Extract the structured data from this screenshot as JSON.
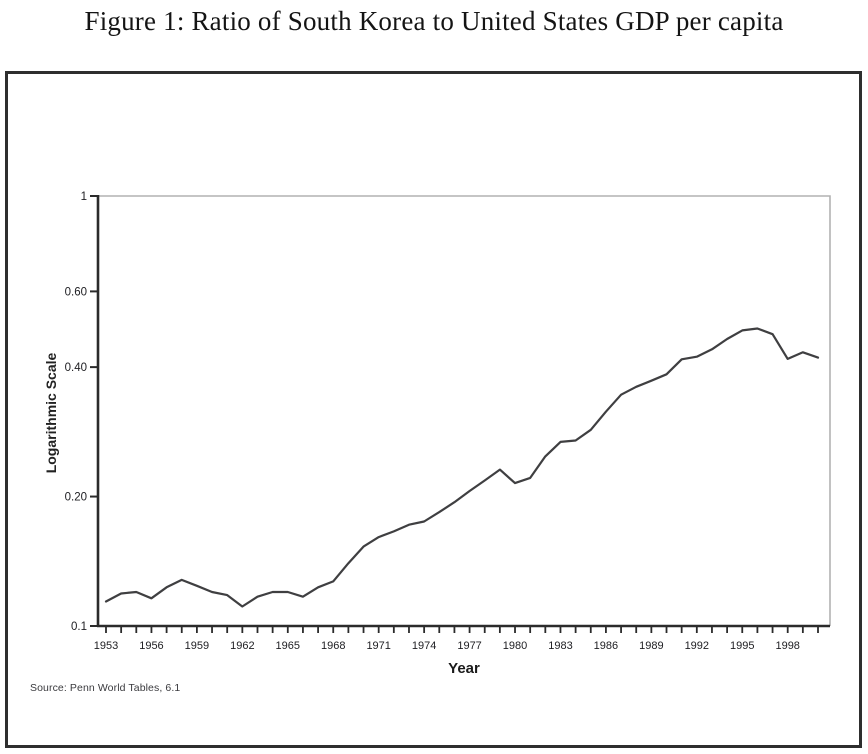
{
  "figure": {
    "title": "Figure 1: Ratio of South Korea to United States GDP per capita",
    "source": "Source: Penn World Tables, 6.1"
  },
  "chart_data": {
    "type": "line",
    "title": "Ratio of South Korea to United States GDP per capita",
    "xlabel": "Year",
    "ylabel": "Logarithmic Scale",
    "y_scale": "log",
    "ylim": [
      0.1,
      1.0
    ],
    "xlim": [
      1953,
      2000
    ],
    "grid": "off",
    "legend": "none",
    "y_ticks": [
      {
        "value": 1.0,
        "label": "1"
      },
      {
        "value": 0.6,
        "label": "0.60"
      },
      {
        "value": 0.4,
        "label": "0.40"
      },
      {
        "value": 0.2,
        "label": "0.20"
      },
      {
        "value": 0.1,
        "label": "0.1"
      }
    ],
    "x_tick_labels": [
      "1953",
      "1956",
      "1959",
      "1962",
      "1965",
      "1968",
      "1971",
      "1974",
      "1977",
      "1980",
      "1983",
      "1986",
      "1989",
      "1992",
      "1995",
      "1998"
    ],
    "x_minor_tick_step_years": 1,
    "line_color": "#3f3f41",
    "series": [
      {
        "name": "South Korea / United States GDP per capita ratio",
        "x": [
          1953,
          1954,
          1955,
          1956,
          1957,
          1958,
          1959,
          1960,
          1961,
          1962,
          1963,
          1964,
          1965,
          1966,
          1967,
          1968,
          1969,
          1970,
          1971,
          1972,
          1973,
          1974,
          1975,
          1976,
          1977,
          1978,
          1979,
          1980,
          1981,
          1982,
          1983,
          1984,
          1985,
          1986,
          1987,
          1988,
          1989,
          1990,
          1991,
          1992,
          1993,
          1994,
          1995,
          1996,
          1997,
          1998,
          1999,
          2000
        ],
        "values": [
          0.114,
          0.119,
          0.12,
          0.116,
          0.123,
          0.128,
          0.124,
          0.12,
          0.118,
          0.111,
          0.117,
          0.12,
          0.12,
          0.117,
          0.123,
          0.127,
          0.14,
          0.153,
          0.161,
          0.166,
          0.172,
          0.175,
          0.184,
          0.194,
          0.206,
          0.218,
          0.231,
          0.215,
          0.221,
          0.248,
          0.268,
          0.27,
          0.286,
          0.315,
          0.345,
          0.36,
          0.372,
          0.385,
          0.417,
          0.423,
          0.44,
          0.465,
          0.487,
          0.492,
          0.477,
          0.418,
          0.433,
          0.421
        ]
      }
    ]
  }
}
